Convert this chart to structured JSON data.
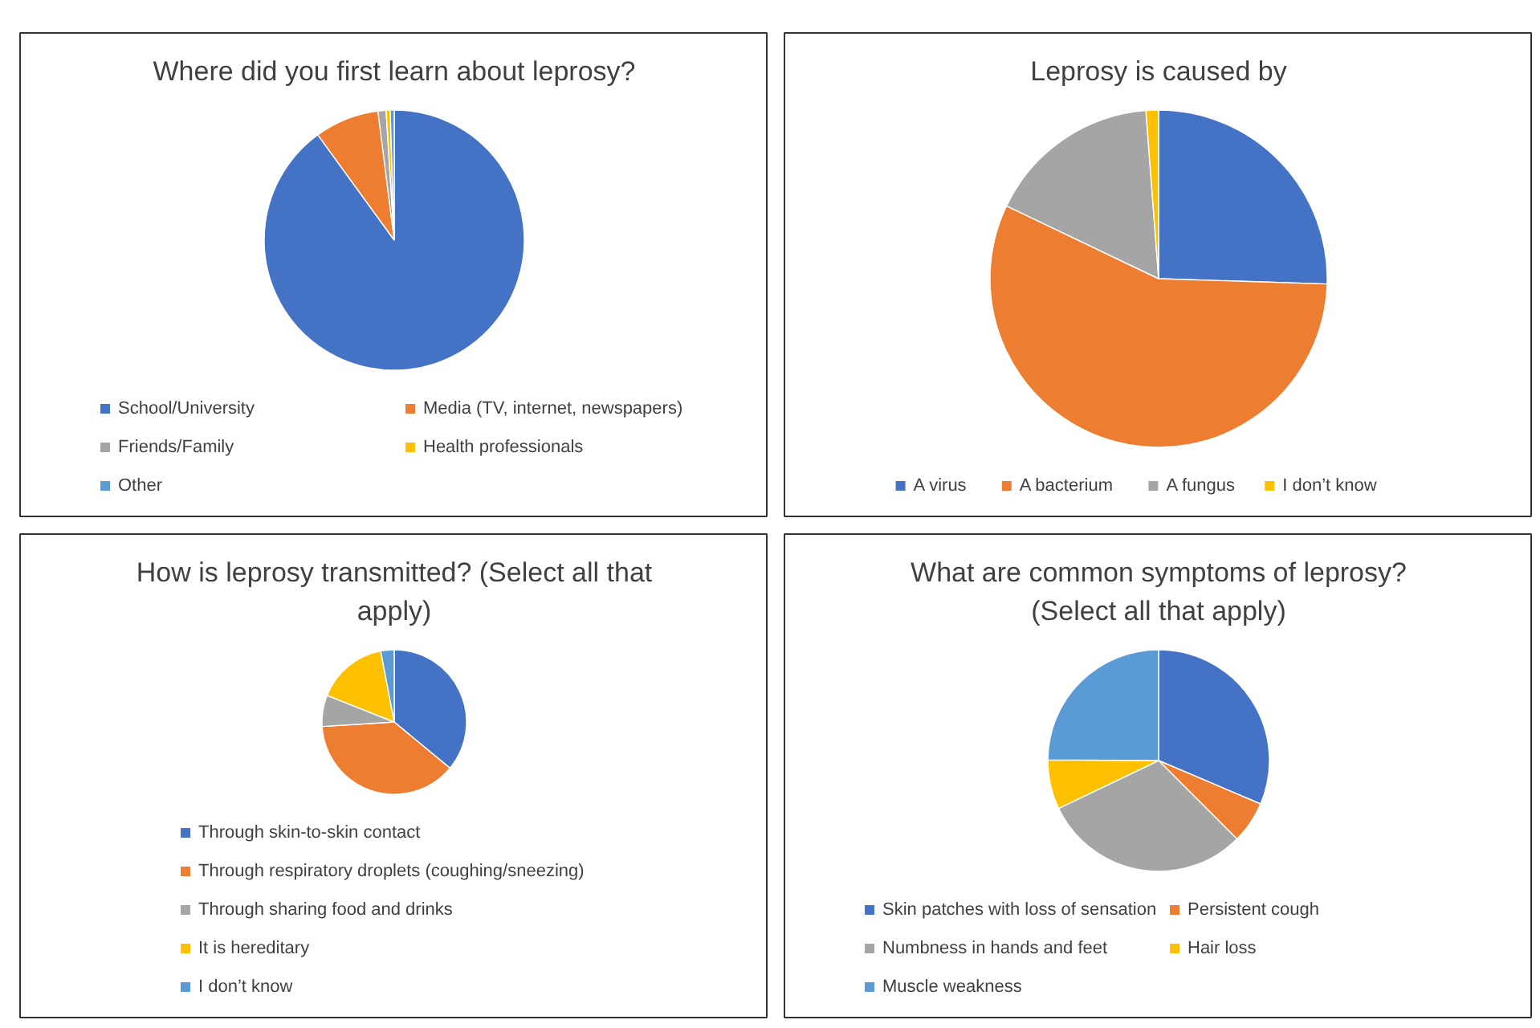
{
  "chart_data": [
    {
      "type": "pie",
      "title": "Where did you first learn about leprosy?",
      "categories": [
        "School/University",
        "Media (TV, internet, newspapers)",
        "Friends/Family",
        "Health professionals",
        "Other"
      ],
      "values": [
        90,
        8,
        1,
        0.5,
        0.5
      ],
      "colors": [
        "#4472c4",
        "#ed7d31",
        "#a5a5a5",
        "#ffc000",
        "#5b9bd5"
      ],
      "legend": "bottom"
    },
    {
      "type": "pie",
      "title": "Leprosy is caused by",
      "categories": [
        "A virus",
        "A bacterium",
        "A fungus",
        "I don’t know"
      ],
      "values": [
        25.5,
        56.6,
        16.7,
        1.2
      ],
      "colors": [
        "#4472c4",
        "#ed7d31",
        "#a5a5a5",
        "#ffc000"
      ],
      "legend": "bottom"
    },
    {
      "type": "pie",
      "title": "How is leprosy transmitted? (Select all that apply)",
      "categories": [
        "Through skin-to-skin contact",
        "Through respiratory droplets (coughing/sneezing)",
        "Through sharing food and drinks",
        "It is hereditary",
        "I don’t know"
      ],
      "values": [
        36,
        38,
        7,
        16,
        3
      ],
      "colors": [
        "#4472c4",
        "#ed7d31",
        "#a5a5a5",
        "#ffc000",
        "#5b9bd5"
      ],
      "legend": "bottom"
    },
    {
      "type": "pie",
      "title": "What are common symptoms of leprosy? (Select all that apply)",
      "categories": [
        "Skin patches with loss of sensation",
        "Persistent cough",
        "Numbness in hands and feet",
        "Hair loss",
        "Muscle weakness"
      ],
      "values": [
        31.4,
        6.1,
        30.4,
        7.2,
        24.9
      ],
      "colors": [
        "#4472c4",
        "#ed7d31",
        "#a5a5a5",
        "#ffc000",
        "#5b9bd5"
      ],
      "legend": "bottom"
    }
  ]
}
